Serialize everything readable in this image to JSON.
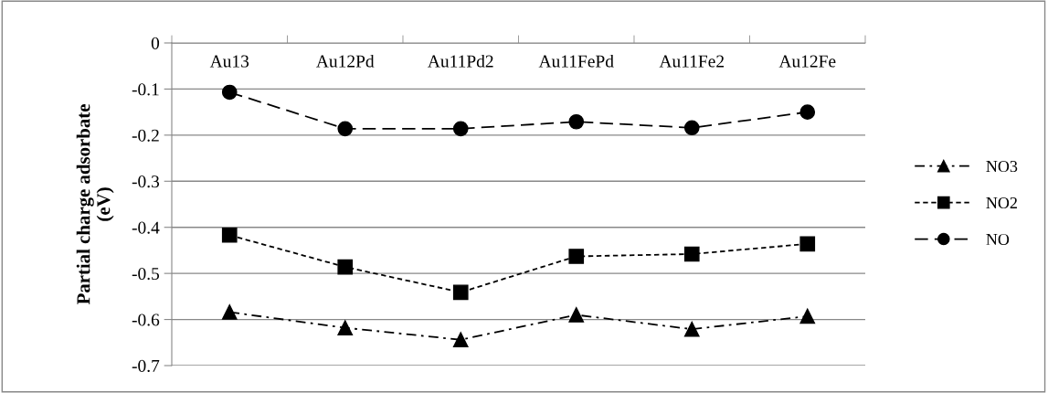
{
  "chart_data": {
    "type": "line",
    "ylabel": "Partial charge adsorbate\n(eV)",
    "categories": [
      "Au13",
      "Au12Pd",
      "Au11Pd2",
      "Au11FePd",
      "Au11Fe2",
      "Au12Fe"
    ],
    "series": [
      {
        "name": "NO3",
        "color": "#000000",
        "marker": "triangle",
        "line_style": "dashdot",
        "values": [
          -0.584,
          -0.618,
          -0.644,
          -0.59,
          -0.621,
          -0.593
        ]
      },
      {
        "name": "NO2",
        "color": "#000000",
        "marker": "square",
        "line_style": "dotted",
        "values": [
          -0.417,
          -0.486,
          -0.541,
          -0.463,
          -0.458,
          -0.436
        ]
      },
      {
        "name": "NO",
        "color": "#000000",
        "marker": "circle",
        "line_style": "dashed",
        "values": [
          -0.107,
          -0.186,
          -0.186,
          -0.171,
          -0.184,
          -0.15
        ]
      }
    ],
    "ylim": [
      -0.7,
      0
    ],
    "yticks": [
      -0.7,
      -0.6,
      -0.5,
      -0.4,
      -0.3,
      -0.2,
      -0.1,
      0
    ],
    "grid": "y",
    "legend": "right"
  }
}
